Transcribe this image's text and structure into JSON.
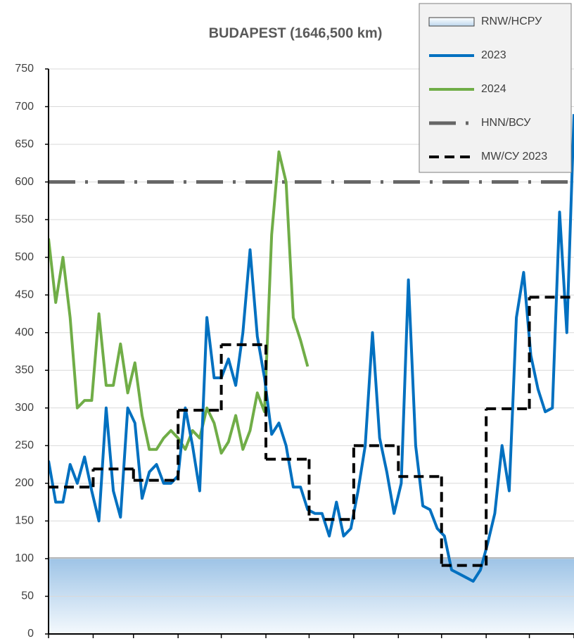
{
  "chart_data": {
    "type": "line",
    "title": "BUDAPEST  (1646,500 km)",
    "x": [
      0,
      5,
      10,
      15,
      20,
      25,
      30,
      35,
      40,
      45,
      50,
      55,
      60,
      65,
      70,
      75,
      80,
      85,
      90,
      95,
      100,
      105,
      110,
      115,
      120,
      125,
      130,
      135,
      140,
      145,
      150,
      155,
      160,
      165,
      170,
      175,
      180,
      185,
      190,
      195,
      200,
      205,
      210,
      215,
      220,
      225,
      230,
      235,
      240,
      245,
      250,
      255,
      260,
      265,
      270,
      275,
      280,
      285,
      290,
      295,
      300,
      305,
      310,
      315,
      320,
      325,
      330,
      335,
      340,
      345,
      350,
      355,
      360,
      365
    ],
    "xlim": [
      0,
      365
    ],
    "xticks": [
      0,
      31,
      59,
      90,
      120,
      151,
      181,
      212,
      243,
      273,
      304,
      334,
      365
    ],
    "ylim": [
      0,
      750
    ],
    "yticks": [
      0,
      50,
      100,
      150,
      200,
      250,
      300,
      350,
      400,
      450,
      500,
      550,
      600,
      650,
      700,
      750
    ],
    "grid": true,
    "series": [
      {
        "name": "2023",
        "color": "#0070c0",
        "values": [
          230,
          175,
          175,
          225,
          200,
          235,
          190,
          150,
          300,
          190,
          155,
          300,
          280,
          180,
          215,
          225,
          200,
          200,
          210,
          300,
          250,
          190,
          420,
          340,
          340,
          365,
          330,
          400,
          510,
          395,
          340,
          265,
          280,
          250,
          195,
          195,
          165,
          160,
          160,
          130,
          175,
          130,
          140,
          190,
          250,
          400,
          260,
          215,
          160,
          200,
          470,
          250,
          170,
          165,
          140,
          130,
          85,
          80,
          75,
          70,
          85,
          120,
          160,
          250,
          190,
          420,
          480,
          370,
          325,
          295,
          300,
          560,
          400,
          690
        ]
      },
      {
        "name": "2024",
        "color": "#70ad47",
        "values": [
          525,
          440,
          500,
          420,
          300,
          310,
          310,
          425,
          330,
          330,
          385,
          320,
          360,
          290,
          245,
          245,
          260,
          270,
          260,
          245,
          270,
          260,
          300,
          280,
          240,
          255,
          290,
          245,
          270,
          320,
          295,
          530,
          640,
          600,
          420,
          390,
          355,
          null,
          null,
          null,
          null,
          null,
          null,
          null,
          null,
          null,
          null,
          null,
          null,
          null,
          null,
          null,
          null,
          null,
          null,
          null,
          null,
          null,
          null,
          null,
          null,
          null,
          null,
          null,
          null,
          null,
          null,
          null,
          null,
          null,
          null,
          null,
          null,
          null
        ]
      }
    ],
    "monthly_mean": {
      "name": "MW/СУ 2023",
      "color": "#000000",
      "values": [
        195,
        219,
        204,
        297,
        384,
        232,
        152,
        250,
        209,
        91,
        299,
        447
      ]
    },
    "reference_line": {
      "name": "HNN/ВСУ",
      "value": 600,
      "color": "#666666"
    },
    "band": {
      "name": "RNW/НСРУ",
      "value": 101,
      "color": "#bdd7ee"
    }
  }
}
